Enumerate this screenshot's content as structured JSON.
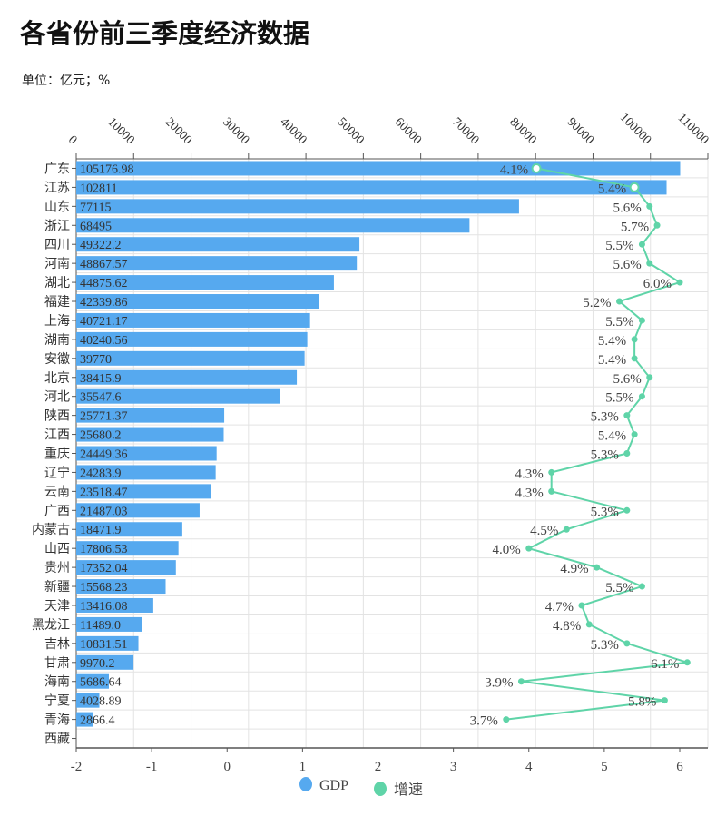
{
  "title": "各省份前三季度经济数据",
  "unit_label": "单位：亿元；%",
  "chart_data": {
    "type": "bar+line",
    "title": "各省份前三季度经济数据",
    "categories": [
      "广东",
      "江苏",
      "山东",
      "浙江",
      "四川",
      "河南",
      "湖北",
      "福建",
      "上海",
      "湖南",
      "安徽",
      "北京",
      "河北",
      "陕西",
      "江西",
      "重庆",
      "辽宁",
      "云南",
      "广西",
      "内蒙古",
      "山西",
      "贵州",
      "新疆",
      "天津",
      "黑龙江",
      "吉林",
      "甘肃",
      "海南",
      "宁夏",
      "青海",
      "西藏"
    ],
    "series": [
      {
        "name": "GDP",
        "type": "bar",
        "axis": "top",
        "color": "#56a9ef",
        "values": [
          105176.98,
          102811,
          77115,
          68495,
          49322.2,
          48867.57,
          44875.62,
          42339.86,
          40721.17,
          40240.56,
          39770,
          38415.9,
          35547.6,
          25771.37,
          25680.2,
          24449.36,
          24283.9,
          23518.47,
          21487.03,
          18471.9,
          17806.53,
          17352.04,
          15568.23,
          13416.08,
          11489.0,
          10831.51,
          9970.2,
          5686.64,
          4028.89,
          2866.4,
          null
        ],
        "labels": [
          "105176.98",
          "102811",
          "77115",
          "68495",
          "49322.2",
          "48867.57",
          "44875.62",
          "42339.86",
          "40721.17",
          "40240.56",
          "39770",
          "38415.9",
          "35547.6",
          "25771.37",
          "25680.2",
          "24449.36",
          "24283.9",
          "23518.47",
          "21487.03",
          "18471.9",
          "17806.53",
          "17352.04",
          "15568.23",
          "13416.08",
          "11489.0",
          "10831.51",
          "9970.2",
          "5686.64",
          "4028.89",
          "2866.4",
          ""
        ]
      },
      {
        "name": "增速",
        "type": "line",
        "axis": "bottom",
        "color": "#5fd4a8",
        "values": [
          4.1,
          5.4,
          5.6,
          5.7,
          5.5,
          5.6,
          6.0,
          5.2,
          5.5,
          5.4,
          5.4,
          5.6,
          5.5,
          5.3,
          5.4,
          5.3,
          4.3,
          4.3,
          5.3,
          4.5,
          4.0,
          4.9,
          5.5,
          4.7,
          4.8,
          5.3,
          6.1,
          3.9,
          5.8,
          3.7,
          null
        ],
        "labels": [
          "4.1%",
          "5.4%",
          "5.6%",
          "5.7%",
          "5.5%",
          "5.6%",
          "6.0%",
          "5.2%",
          "5.5%",
          "5.4%",
          "5.4%",
          "5.6%",
          "5.5%",
          "5.3%",
          "5.4%",
          "5.3%",
          "4.3%",
          "4.3%",
          "5.3%",
          "4.5%",
          "4.0%",
          "4.9%",
          "5.5%",
          "4.7%",
          "4.8%",
          "5.3%",
          "6.1%",
          "3.9%",
          "5.8%",
          "3.7%",
          ""
        ]
      }
    ],
    "top_axis": {
      "range": [
        0,
        110000
      ],
      "ticks": [
        "0",
        "10000",
        "20000",
        "30000",
        "40000",
        "50000",
        "60000",
        "70000",
        "80000",
        "90000",
        "100000",
        "110000"
      ]
    },
    "bottom_axis": {
      "range": [
        -2,
        6
      ],
      "ticks": [
        "-2",
        "-1",
        "0",
        "1",
        "2",
        "3",
        "4",
        "5",
        "6"
      ]
    },
    "grid": true,
    "legend": {
      "position": "bottom",
      "items": [
        "GDP",
        "增速"
      ]
    }
  }
}
